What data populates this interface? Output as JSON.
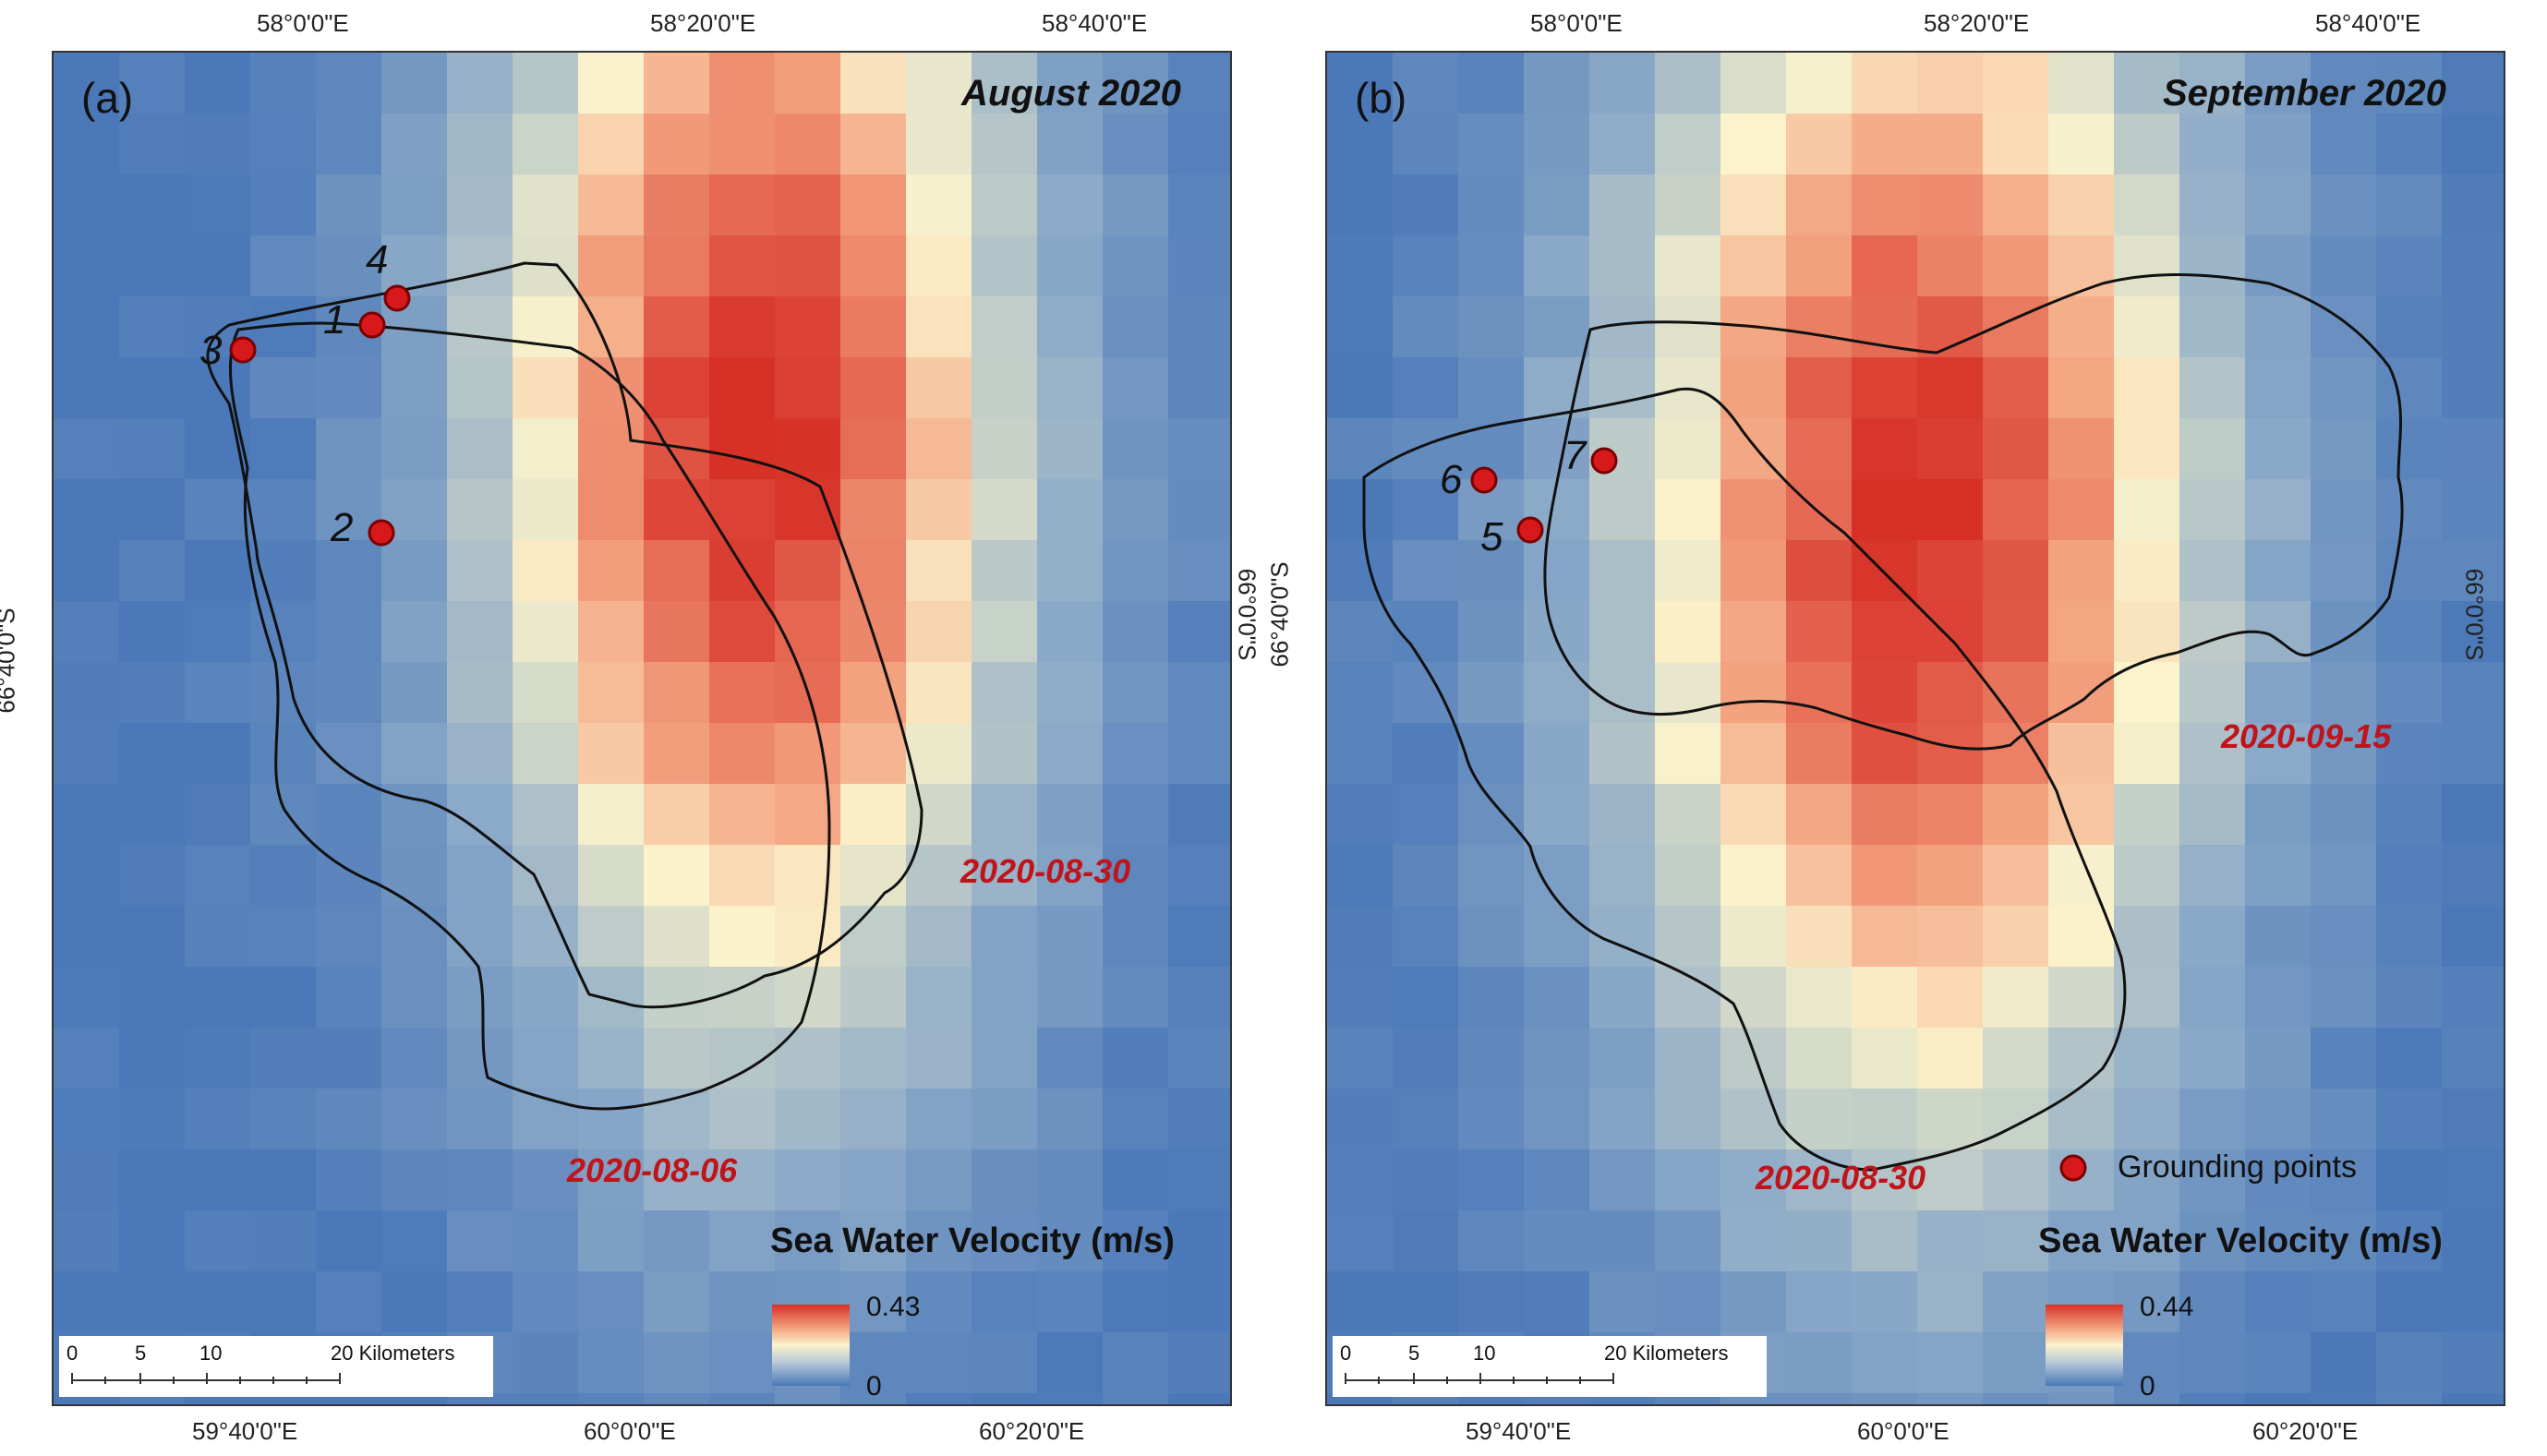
{
  "panels": [
    {
      "letter": "(a)",
      "title": "August 2020",
      "top_ticks": [
        "58°0'0\"E",
        "58°20'0\"E",
        "58°40'0\"E"
      ],
      "bottom_ticks": [
        "59°40'0\"E",
        "60°0'0\"E",
        "60°20'0\"E"
      ],
      "left_tick": "66°40'0\"S",
      "right_tick": "66°0'0\"S",
      "date_labels": [
        "2020-08-30",
        "2020-08-06"
      ],
      "point_labels": [
        "1",
        "2",
        "3",
        "4"
      ],
      "legend": {
        "title": "Sea Water Velocity (m/s)",
        "max": "0.43",
        "min": "0"
      },
      "scale": {
        "ticks": [
          "0",
          "5",
          "10",
          "20 Kilometers"
        ]
      }
    },
    {
      "letter": "(b)",
      "title": "September 2020",
      "top_ticks": [
        "58°0'0\"E",
        "58°20'0\"E",
        "58°40'0\"E"
      ],
      "bottom_ticks": [
        "59°40'0\"E",
        "60°0'0\"E",
        "60°20'0\"E"
      ],
      "left_tick": "66°40'0\"S",
      "right_tick": "66°0'0\"S",
      "date_labels": [
        "2020-09-15",
        "2020-08-30"
      ],
      "point_labels": [
        "5",
        "6",
        "7"
      ],
      "legend": {
        "title": "Sea Water Velocity (m/s)",
        "max": "0.44",
        "min": "0",
        "points_label": "Grounding points"
      },
      "scale": {
        "ticks": [
          "0",
          "5",
          "10",
          "20 Kilometers"
        ]
      }
    }
  ],
  "colors": {
    "ramp_high": "#d73027",
    "ramp_mid": "#fbf3cc",
    "ramp_low": "#4a78b8",
    "point": "#d7191c",
    "date_text": "#c0141b"
  }
}
